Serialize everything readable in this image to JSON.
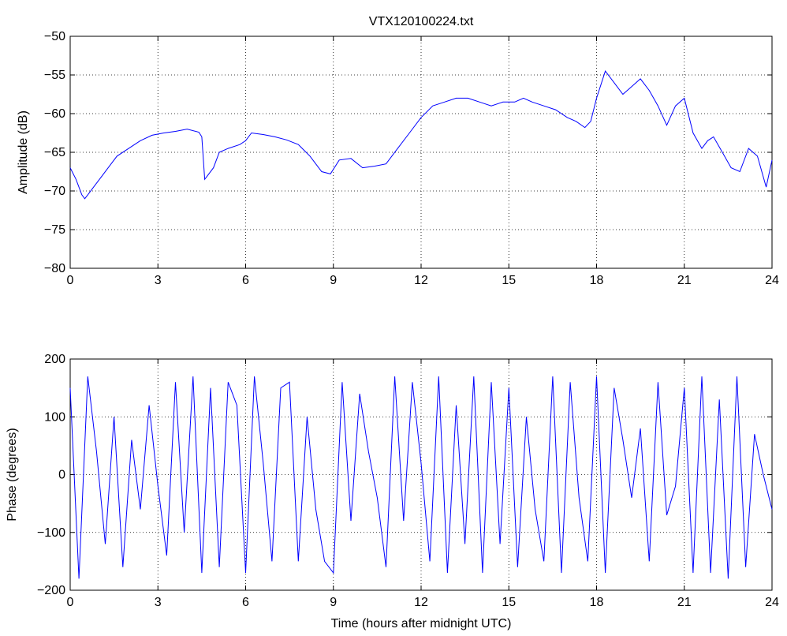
{
  "chart_data": [
    {
      "type": "line",
      "title": "VTX120100224.txt",
      "xlabel": "",
      "ylabel": "Amplitude (dB)",
      "xlim": [
        0,
        24
      ],
      "ylim": [
        -80,
        -50
      ],
      "xticks": [
        0,
        3,
        6,
        9,
        12,
        15,
        18,
        21,
        24
      ],
      "yticks": [
        -80,
        -75,
        -70,
        -65,
        -60,
        -55,
        -50
      ],
      "grid": true,
      "color": "#0000ff",
      "series": [
        {
          "x": [
            0,
            0.2,
            0.4,
            0.5,
            0.6,
            0.8,
            1.0,
            1.3,
            1.6,
            2.0,
            2.4,
            2.8,
            3.2,
            3.6,
            4.0,
            4.4,
            4.5,
            4.6,
            4.7,
            4.9,
            5.1,
            5.4,
            5.8,
            6.0,
            6.2,
            6.6,
            7.0,
            7.4,
            7.8,
            8.2,
            8.6,
            8.9,
            9.2,
            9.6,
            10.0,
            10.4,
            10.8,
            11.2,
            11.6,
            12.0,
            12.4,
            12.8,
            13.2,
            13.6,
            14.0,
            14.4,
            14.8,
            15.2,
            15.5,
            15.8,
            16.2,
            16.6,
            17.0,
            17.3,
            17.6,
            17.8,
            18.0,
            18.3,
            18.6,
            18.9,
            19.2,
            19.5,
            19.8,
            20.1,
            20.4,
            20.7,
            21.0,
            21.3,
            21.6,
            21.8,
            22.0,
            22.3,
            22.6,
            22.9,
            23.2,
            23.5,
            23.8,
            24.0
          ],
          "y": [
            -67,
            -68.5,
            -70.5,
            -71,
            -70.5,
            -69.5,
            -68.5,
            -67,
            -65.5,
            -64.5,
            -63.5,
            -62.8,
            -62.5,
            -62.3,
            -62.0,
            -62.4,
            -63,
            -68.5,
            -68,
            -67,
            -65,
            -64.5,
            -64,
            -63.5,
            -62.5,
            -62.7,
            -63,
            -63.4,
            -64,
            -65.5,
            -67.5,
            -67.8,
            -66,
            -65.8,
            -67,
            -66.8,
            -66.5,
            -64.5,
            -62.5,
            -60.5,
            -59,
            -58.5,
            -58,
            -58,
            -58.5,
            -59,
            -58.5,
            -58.5,
            -58,
            -58.5,
            -59,
            -59.5,
            -60.5,
            -61,
            -61.8,
            -61,
            -58,
            -54.5,
            -56,
            -57.5,
            -56.5,
            -55.5,
            -57,
            -59,
            -61.5,
            -59,
            -58,
            -62.5,
            -64.5,
            -63.5,
            -63,
            -65,
            -67,
            -67.5,
            -64.5,
            -65.5,
            -69.5,
            -66
          ]
        }
      ]
    },
    {
      "type": "line",
      "title": "",
      "xlabel": "Time (hours after midnight UTC)",
      "ylabel": "Phase (degrees)",
      "xlim": [
        0,
        24
      ],
      "ylim": [
        -200,
        200
      ],
      "xticks": [
        0,
        3,
        6,
        9,
        12,
        15,
        18,
        21,
        24
      ],
      "yticks": [
        -200,
        -100,
        0,
        100,
        200
      ],
      "grid": true,
      "color": "#0000ff",
      "series": [
        {
          "x": [
            0,
            0.3,
            0.6,
            0.9,
            1.2,
            1.5,
            1.8,
            2.1,
            2.4,
            2.7,
            3.0,
            3.3,
            3.6,
            3.9,
            4.2,
            4.5,
            4.8,
            5.1,
            5.4,
            5.7,
            6.0,
            6.3,
            6.6,
            6.9,
            7.2,
            7.5,
            7.8,
            8.1,
            8.4,
            8.7,
            9.0,
            9.3,
            9.6,
            9.9,
            10.2,
            10.5,
            10.8,
            11.1,
            11.4,
            11.7,
            12.0,
            12.3,
            12.6,
            12.9,
            13.2,
            13.5,
            13.8,
            14.1,
            14.4,
            14.7,
            15.0,
            15.3,
            15.6,
            15.9,
            16.2,
            16.5,
            16.8,
            17.1,
            17.4,
            17.7,
            18.0,
            18.3,
            18.6,
            18.9,
            19.2,
            19.5,
            19.8,
            20.1,
            20.4,
            20.7,
            21.0,
            21.3,
            21.6,
            21.9,
            22.2,
            22.5,
            22.8,
            23.1,
            23.4,
            23.7,
            24.0
          ],
          "y": [
            150,
            -180,
            170,
            40,
            -120,
            100,
            -160,
            60,
            -60,
            120,
            -20,
            -140,
            160,
            -100,
            170,
            -170,
            150,
            -160,
            160,
            120,
            -170,
            170,
            20,
            -150,
            150,
            160,
            -150,
            100,
            -60,
            -150,
            -170,
            160,
            -80,
            140,
            40,
            -40,
            -160,
            170,
            -80,
            160,
            20,
            -150,
            170,
            -170,
            120,
            -120,
            170,
            -170,
            160,
            -120,
            150,
            -160,
            100,
            -60,
            -150,
            170,
            -170,
            160,
            -40,
            -150,
            170,
            -170,
            150,
            60,
            -40,
            80,
            -150,
            160,
            -70,
            -20,
            150,
            -170,
            170,
            -170,
            130,
            -180,
            170,
            -160,
            70,
            0,
            -60
          ]
        }
      ]
    }
  ]
}
